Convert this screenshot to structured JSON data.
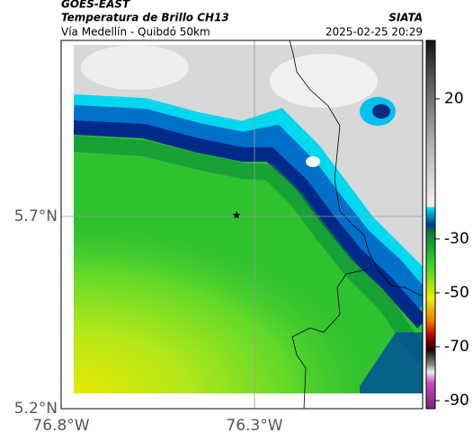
{
  "header": {
    "source": "GOES-EAST",
    "title": "Temperatura de Brillo CH13",
    "subtitle": "Vía Medellín - Quibdó 50km",
    "brand": "SIATA",
    "datetime": "2025-02-25 20:29"
  },
  "axes": {
    "y_labels": [
      "5.7°N",
      "5.2°N"
    ],
    "x_labels": [
      "76.8°W",
      "76.3°W"
    ]
  },
  "colorbar": {
    "ticks": [
      20,
      -30,
      -50,
      -70,
      -90
    ]
  }
}
